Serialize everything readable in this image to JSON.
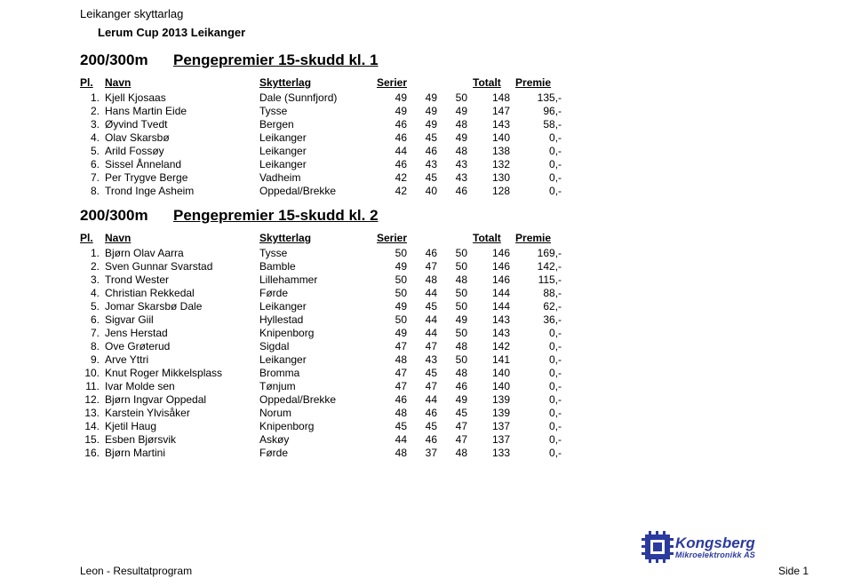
{
  "header": {
    "org": "Leikanger skyttarlag",
    "cup": "Lerum Cup 2013 Leikanger"
  },
  "columns": {
    "pl": "Pl.",
    "name": "Navn",
    "club": "Skytterlag",
    "series": "Serier",
    "total": "Totalt",
    "prize": "Premie"
  },
  "sections": [
    {
      "class_label": "200/300m",
      "title": "Pengepremier 15-skudd kl. 1",
      "rows": [
        {
          "pl": "1.",
          "name": "Kjell Kjosaas",
          "club": "Dale (Sunnfjord)",
          "s1": "49",
          "s2": "49",
          "s3": "50",
          "tot": "148",
          "prem": "135,-"
        },
        {
          "pl": "2.",
          "name": "Hans Martin Eide",
          "club": "Tysse",
          "s1": "49",
          "s2": "49",
          "s3": "49",
          "tot": "147",
          "prem": "96,-"
        },
        {
          "pl": "3.",
          "name": "Øyvind Tvedt",
          "club": "Bergen",
          "s1": "46",
          "s2": "49",
          "s3": "48",
          "tot": "143",
          "prem": "58,-"
        },
        {
          "pl": "4.",
          "name": "Olav Skarsbø",
          "club": "Leikanger",
          "s1": "46",
          "s2": "45",
          "s3": "49",
          "tot": "140",
          "prem": "0,-"
        },
        {
          "pl": "5.",
          "name": "Arild Fossøy",
          "club": "Leikanger",
          "s1": "44",
          "s2": "46",
          "s3": "48",
          "tot": "138",
          "prem": "0,-"
        },
        {
          "pl": "6.",
          "name": "Sissel Ånneland",
          "club": "Leikanger",
          "s1": "46",
          "s2": "43",
          "s3": "43",
          "tot": "132",
          "prem": "0,-"
        },
        {
          "pl": "7.",
          "name": "Per Trygve Berge",
          "club": "Vadheim",
          "s1": "42",
          "s2": "45",
          "s3": "43",
          "tot": "130",
          "prem": "0,-"
        },
        {
          "pl": "8.",
          "name": "Trond Inge Asheim",
          "club": "Oppedal/Brekke",
          "s1": "42",
          "s2": "40",
          "s3": "46",
          "tot": "128",
          "prem": "0,-"
        }
      ]
    },
    {
      "class_label": "200/300m",
      "title": "Pengepremier 15-skudd kl. 2",
      "rows": [
        {
          "pl": "1.",
          "name": "Bjørn Olav Aarra",
          "club": "Tysse",
          "s1": "50",
          "s2": "46",
          "s3": "50",
          "tot": "146",
          "prem": "169,-"
        },
        {
          "pl": "2.",
          "name": "Sven Gunnar Svarstad",
          "club": "Bamble",
          "s1": "49",
          "s2": "47",
          "s3": "50",
          "tot": "146",
          "prem": "142,-"
        },
        {
          "pl": "3.",
          "name": "Trond Wester",
          "club": "Lillehammer",
          "s1": "50",
          "s2": "48",
          "s3": "48",
          "tot": "146",
          "prem": "115,-"
        },
        {
          "pl": "4.",
          "name": "Christian Rekkedal",
          "club": "Førde",
          "s1": "50",
          "s2": "44",
          "s3": "50",
          "tot": "144",
          "prem": "88,-"
        },
        {
          "pl": "5.",
          "name": "Jomar Skarsbø Dale",
          "club": "Leikanger",
          "s1": "49",
          "s2": "45",
          "s3": "50",
          "tot": "144",
          "prem": "62,-"
        },
        {
          "pl": "6.",
          "name": "Sigvar Giil",
          "club": "Hyllestad",
          "s1": "50",
          "s2": "44",
          "s3": "49",
          "tot": "143",
          "prem": "36,-"
        },
        {
          "pl": "7.",
          "name": "Jens Herstad",
          "club": "Knipenborg",
          "s1": "49",
          "s2": "44",
          "s3": "50",
          "tot": "143",
          "prem": "0,-"
        },
        {
          "pl": "8.",
          "name": "Ove Grøterud",
          "club": "Sigdal",
          "s1": "47",
          "s2": "47",
          "s3": "48",
          "tot": "142",
          "prem": "0,-"
        },
        {
          "pl": "9.",
          "name": "Arve Yttri",
          "club": "Leikanger",
          "s1": "48",
          "s2": "43",
          "s3": "50",
          "tot": "141",
          "prem": "0,-"
        },
        {
          "pl": "10.",
          "name": "Knut Roger Mikkelsplass",
          "club": "Bromma",
          "s1": "47",
          "s2": "45",
          "s3": "48",
          "tot": "140",
          "prem": "0,-"
        },
        {
          "pl": "11.",
          "name": "Ivar Molde sen",
          "club": "Tønjum",
          "s1": "47",
          "s2": "47",
          "s3": "46",
          "tot": "140",
          "prem": "0,-"
        },
        {
          "pl": "12.",
          "name": "Bjørn Ingvar Oppedal",
          "club": "Oppedal/Brekke",
          "s1": "46",
          "s2": "44",
          "s3": "49",
          "tot": "139",
          "prem": "0,-"
        },
        {
          "pl": "13.",
          "name": "Karstein Ylvisåker",
          "club": "Norum",
          "s1": "48",
          "s2": "46",
          "s3": "45",
          "tot": "139",
          "prem": "0,-"
        },
        {
          "pl": "14.",
          "name": "Kjetil Haug",
          "club": "Knipenborg",
          "s1": "45",
          "s2": "45",
          "s3": "47",
          "tot": "137",
          "prem": "0,-"
        },
        {
          "pl": "15.",
          "name": "Esben Bjørsvik",
          "club": "Askøy",
          "s1": "44",
          "s2": "46",
          "s3": "47",
          "tot": "137",
          "prem": "0,-"
        },
        {
          "pl": "16.",
          "name": "Bjørn Martini",
          "club": "Førde",
          "s1": "48",
          "s2": "37",
          "s3": "48",
          "tot": "133",
          "prem": "0,-"
        }
      ]
    }
  ],
  "logo": {
    "brand": "Kongsberg",
    "sub": "Mikroelektronikk AS"
  },
  "footer": {
    "left": "Leon - Resultatprogram",
    "right": "Side 1"
  }
}
